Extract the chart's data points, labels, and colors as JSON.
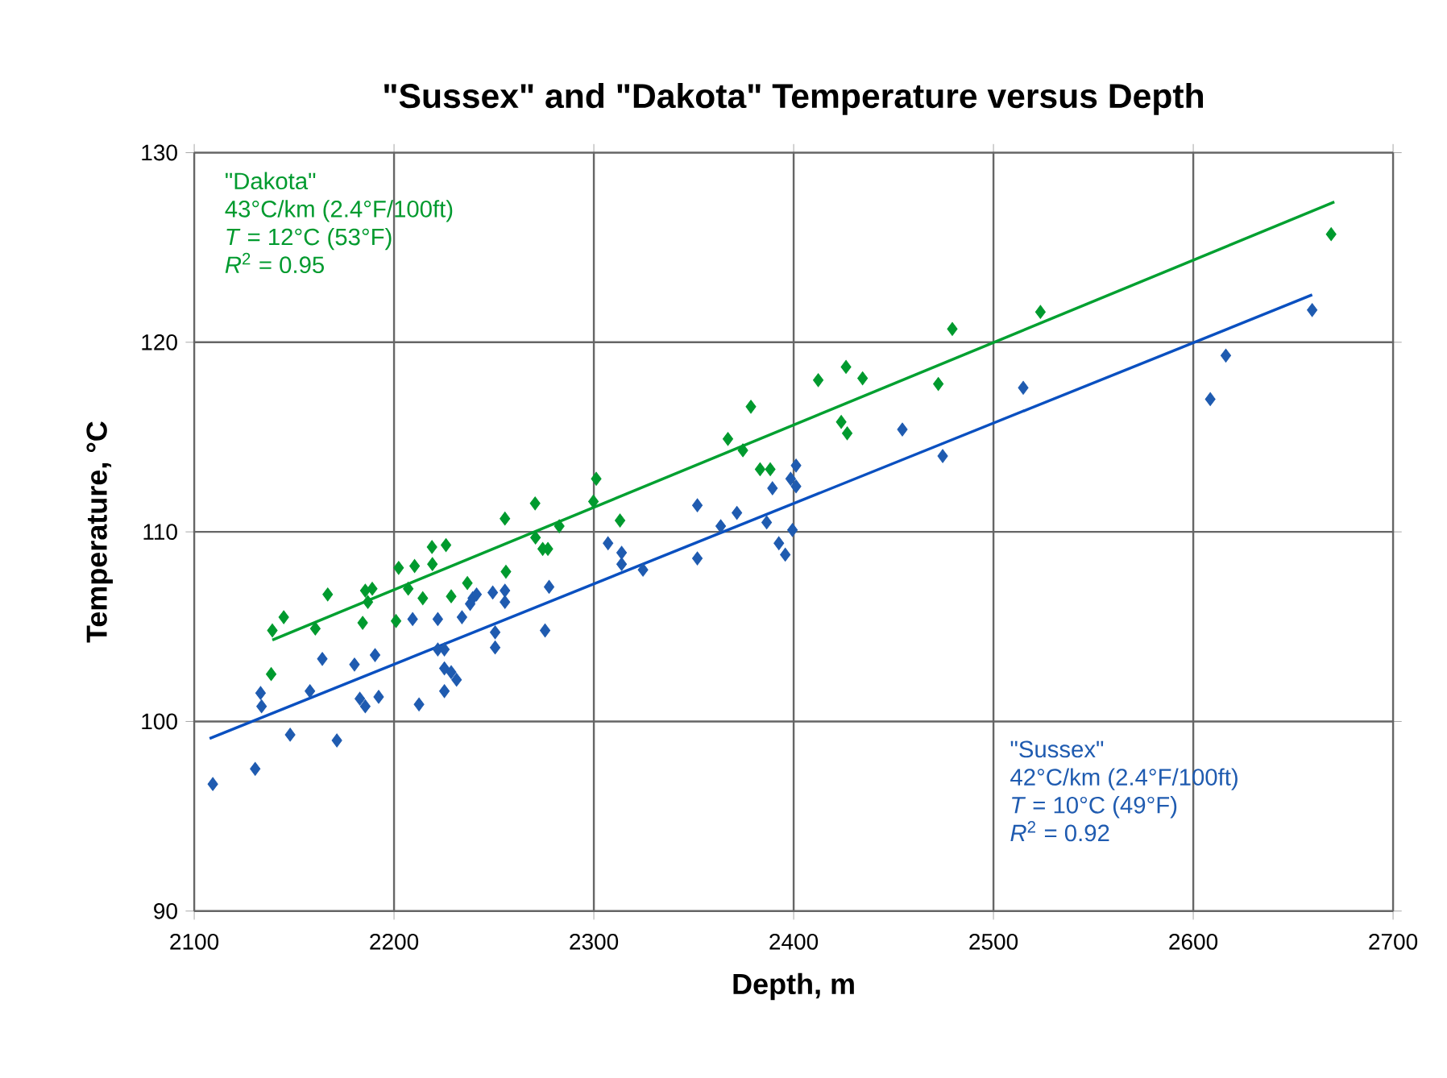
{
  "chart_data": {
    "type": "scatter",
    "title": "\"Sussex\" and \"Dakota\" Temperature versus Depth",
    "xlabel": "Depth, m",
    "ylabel": "Temperature, °C",
    "xlim": [
      2100,
      2700
    ],
    "xticks": [
      2100,
      2200,
      2300,
      2400,
      2500,
      2600,
      2700
    ],
    "ylim": [
      90,
      130
    ],
    "yticks": [
      90,
      100,
      110,
      120,
      130
    ],
    "grid": true,
    "annotations": [
      "\"Dakota\"",
      "43°C/km (2.4°F/100ft)",
      "*T* = 12°C (53°F)",
      "*R*$^{2}$ = 0.95",
      "\"Sussex\"",
      "42°C/km (2.4°F/100ft)",
      "*T* = 10°C (49°F)",
      "*R*$^{2}$ = 0.92"
    ],
    "series": [
      {
        "color": "#009a2e",
        "marker": "diamond",
        "x": [
          2138.5,
          2139.1,
          2144.8,
          2160.6,
          2166.8,
          2184.3,
          2185.6,
          2189.1,
          2186.9,
          2201.0,
          2202.3,
          2207.1,
          2210.3,
          2214.4,
          2219.0,
          2219.2,
          2226.0,
          2228.6,
          2236.7,
          2255.5,
          2256.0,
          2270.6,
          2270.8,
          2274.4,
          2277.0,
          2282.7,
          2299.8,
          2301.2,
          2313.1,
          2367.1,
          2374.6,
          2378.6,
          2383.2,
          2388.3,
          2412.3,
          2423.8,
          2426.2,
          2426.8,
          2434.5,
          2472.4,
          2479.4,
          2523.5,
          2669.0
        ],
        "values": [
          102.5,
          104.8,
          105.5,
          104.9,
          106.7,
          105.2,
          106.9,
          107.0,
          106.3,
          105.3,
          108.1,
          107.0,
          108.2,
          106.5,
          109.2,
          108.3,
          109.3,
          106.6,
          107.3,
          110.7,
          107.9,
          111.5,
          109.7,
          109.1,
          109.1,
          110.3,
          111.6,
          112.8,
          110.6,
          114.9,
          114.3,
          116.6,
          113.3,
          113.3,
          118.0,
          115.8,
          118.7,
          115.2,
          118.1,
          117.8,
          120.7,
          121.6,
          125.7
        ]
      },
      {
        "color": "#1f5bb0",
        "marker": "diamond",
        "x": [
          2109.3,
          2130.5,
          2133.2,
          2133.7,
          2148.0,
          2157.9,
          2164.1,
          2171.4,
          2180.2,
          2182.9,
          2185.6,
          2190.5,
          2192.3,
          2209.3,
          2212.5,
          2221.9,
          2221.9,
          2225.2,
          2225.2,
          2225.2,
          2228.6,
          2231.3,
          2234.0,
          2238.1,
          2239.4,
          2241.3,
          2249.4,
          2250.6,
          2250.6,
          2255.5,
          2255.5,
          2275.6,
          2277.6,
          2307.1,
          2313.9,
          2313.9,
          2324.6,
          2351.8,
          2351.8,
          2363.5,
          2371.6,
          2386.5,
          2389.4,
          2392.6,
          2395.8,
          2399.4,
          2398.5,
          2401.2,
          2401.2,
          2454.4,
          2474.6,
          2514.9,
          2608.5,
          2616.3,
          2659.5
        ],
        "values": [
          96.7,
          97.5,
          101.5,
          100.8,
          99.3,
          101.6,
          103.3,
          99.0,
          103.0,
          101.2,
          100.8,
          103.5,
          101.3,
          105.4,
          100.9,
          105.4,
          103.8,
          103.8,
          102.8,
          101.6,
          102.6,
          102.2,
          105.5,
          106.2,
          106.5,
          106.7,
          106.8,
          104.7,
          103.9,
          106.9,
          106.3,
          104.8,
          107.1,
          109.4,
          108.9,
          108.3,
          108.0,
          111.4,
          108.6,
          110.3,
          111.0,
          110.5,
          112.3,
          109.4,
          108.8,
          110.1,
          112.8,
          113.5,
          112.4,
          115.4,
          114.0,
          117.6,
          117.0,
          119.3,
          121.7
        ]
      },
      {
        "type": "line",
        "marker": "none",
        "color": "#00a030",
        "x": [
          2139.1,
          2670.6
        ],
        "values": [
          104.3,
          127.4
        ]
      },
      {
        "type": "line",
        "marker": "none",
        "color": "#0a50c0",
        "x": [
          2107.7,
          2659.5
        ],
        "values": [
          99.1,
          122.5
        ]
      }
    ]
  }
}
